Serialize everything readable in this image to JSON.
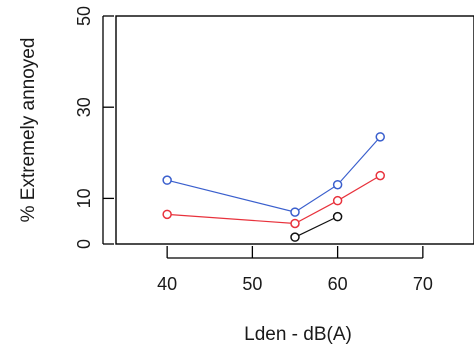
{
  "chart_data": {
    "type": "line",
    "xlabel": "Lden - dB(A)",
    "ylabel": "% Extremely annoyed",
    "xlim": [
      34,
      76
    ],
    "ylim": [
      0,
      50
    ],
    "x_ticks": [
      40,
      50,
      60,
      70
    ],
    "y_ticks": [
      0,
      10,
      30,
      50
    ],
    "grid": false,
    "legend": "none",
    "series": [
      {
        "color": "#3a5fcd",
        "x": [
          40,
          55,
          60,
          65
        ],
        "y": [
          14,
          7,
          13,
          23.5
        ]
      },
      {
        "color": "#e8323c",
        "x": [
          40,
          55,
          60,
          65
        ],
        "y": [
          6.5,
          4.5,
          9.5,
          15
        ]
      },
      {
        "color": "#111111",
        "x": [
          55,
          60
        ],
        "y": [
          1.5,
          6
        ]
      }
    ]
  }
}
